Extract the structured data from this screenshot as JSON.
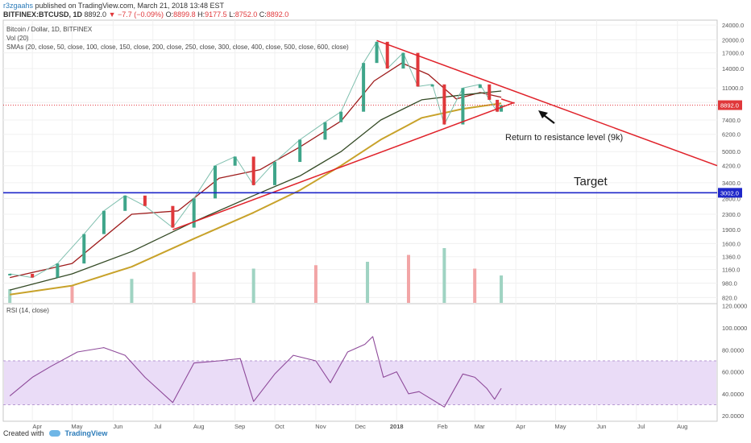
{
  "header": {
    "author": "r3zgaahs",
    "published_text": " published on TradingView.com, March 21, 2018 13:48 EST",
    "symbol": "BITFINEX:BTCUSD, 1D",
    "last": "8892.0",
    "change": "−7.7 (−0.09%)",
    "o_label": "O:",
    "o_value": "8899.8",
    "h_label": "H:",
    "h_value": "9177.5",
    "l_label": "L:",
    "l_value": "8752.0",
    "c_label": "C:",
    "c_value": "8892.0"
  },
  "legend": {
    "title": "Bitcoin / Dollar, 1D, BITFINEX",
    "vol": "Vol (20)",
    "smas": "SMAs (20, close, 50, close, 100, close, 150, close, 200, close, 250, close, 300, close, 400, close, 500, close, 600, close)",
    "rsi": "RSI (14, close)"
  },
  "annotations": {
    "resistance": "Return to resistance level (9k)",
    "target": "Target"
  },
  "footer": {
    "created_with": "Created with",
    "brand": "TradingView"
  },
  "colors": {
    "up": "#3fa58a",
    "down": "#e0383b",
    "trendline": "#e0222a",
    "sma_red": "#9e1b1b",
    "sma_green": "#344a25",
    "sma_gold": "#c8a22a",
    "target_line": "#1f27c9",
    "rsi_line": "#8e4a9a",
    "rsi_band": "#eadcf7",
    "volume_up": "#9fd3c2",
    "volume_down": "#f2a5a6"
  },
  "chart_data": [
    {
      "type": "line",
      "title": "Bitcoin / Dollar, 1D, BITFINEX",
      "y_scale": "log",
      "y_ticks": [
        24000,
        20000,
        17000,
        14000,
        11000,
        9200,
        7400,
        6200,
        5000,
        4200,
        3400,
        2800,
        2300,
        1900,
        1600,
        1360,
        1160,
        980,
        820
      ],
      "y_tick_labels": [
        "24000.0",
        "20000.0",
        "17000.0",
        "14000.0",
        "11000.0",
        "9200.0",
        "7400.0",
        "6200.0",
        "5000.0",
        "4200.0",
        "3400.0",
        "2800.0",
        "2300.0",
        "1900.0",
        "1600.0",
        "1360.0",
        "1160.0",
        "980.0",
        "820.0"
      ],
      "x_labels": [
        "Apr",
        "May",
        "Jun",
        "Jul",
        "Aug",
        "Sep",
        "Oct",
        "Nov",
        "Dec",
        "2018",
        "Feb",
        "Mar",
        "Apr",
        "May",
        "Jun",
        "Jul",
        "Aug"
      ],
      "price_labels": [
        {
          "value": 8892,
          "text": "8892.0"
        },
        {
          "value": 3002,
          "text": "3002.0"
        }
      ],
      "series": [
        {
          "name": "BTCUSD",
          "x": [
            "2017-03-15",
            "2017-04-01",
            "2017-04-20",
            "2017-05-10",
            "2017-05-25",
            "2017-06-10",
            "2017-06-25",
            "2017-07-16",
            "2017-08-01",
            "2017-08-17",
            "2017-09-01",
            "2017-09-15",
            "2017-10-01",
            "2017-10-20",
            "2017-11-08",
            "2017-11-20",
            "2017-12-07",
            "2017-12-17",
            "2017-12-25",
            "2018-01-06",
            "2018-01-17",
            "2018-01-28",
            "2018-02-06",
            "2018-02-20",
            "2018-03-05",
            "2018-03-12",
            "2018-03-18",
            "2018-03-21"
          ],
          "values": [
            1100,
            1050,
            1250,
            1800,
            2400,
            2900,
            2550,
            1950,
            2800,
            4200,
            4700,
            3300,
            4400,
            5800,
            7200,
            8200,
            15000,
            19500,
            14000,
            17000,
            11200,
            11500,
            7000,
            11000,
            11500,
            9500,
            8200,
            8892
          ]
        },
        {
          "name": "SMA 20",
          "x": [
            "2017-03-15",
            "2017-05-01",
            "2017-06-15",
            "2017-07-20",
            "2017-08-20",
            "2017-09-20",
            "2017-10-20",
            "2017-11-20",
            "2017-12-15",
            "2018-01-05",
            "2018-01-25",
            "2018-02-15",
            "2018-03-05",
            "2018-03-21"
          ],
          "values": [
            1050,
            1250,
            2300,
            2400,
            3600,
            4000,
            5300,
            7300,
            12000,
            15000,
            13000,
            9600,
            10400,
            9800
          ]
        },
        {
          "name": "SMA 100",
          "x": [
            "2017-03-15",
            "2017-05-01",
            "2017-06-15",
            "2017-08-01",
            "2017-09-15",
            "2017-10-20",
            "2017-11-20",
            "2017-12-20",
            "2018-01-20",
            "2018-02-20",
            "2018-03-21"
          ],
          "values": [
            900,
            1100,
            1450,
            2100,
            2900,
            3700,
            5000,
            7400,
            9500,
            10100,
            10600
          ]
        },
        {
          "name": "SMA 150",
          "x": [
            "2017-03-15",
            "2017-05-01",
            "2017-06-15",
            "2017-08-01",
            "2017-09-15",
            "2017-10-20",
            "2017-11-20",
            "2017-12-20",
            "2018-01-20",
            "2018-02-20",
            "2018-03-21"
          ],
          "values": [
            850,
            950,
            1200,
            1700,
            2350,
            3100,
            4200,
            5800,
            7600,
            8500,
            9100
          ]
        }
      ],
      "trendlines": [
        {
          "from": {
            "x": "2017-12-17",
            "y": 19800
          },
          "to": {
            "x": "2018-08-31",
            "y": 4200
          }
        },
        {
          "from": {
            "x": "2017-07-16",
            "y": 1900
          },
          "to": {
            "x": "2018-03-31",
            "y": 9200
          }
        },
        {
          "from": {
            "x": "2018-03-21",
            "y": 9600
          },
          "to": {
            "x": "2018-03-31",
            "y": 9100
          }
        }
      ],
      "horizontal_lines": [
        {
          "value": 3002,
          "label": "Target"
        },
        {
          "value": 8892
        }
      ]
    },
    {
      "type": "bar",
      "title": "Vol (20)",
      "series": [
        {
          "x": [
            "2017-03-15",
            "2017-05-01",
            "2017-06-15",
            "2017-08-01",
            "2017-09-15",
            "2017-11-01",
            "2017-12-10",
            "2018-01-10",
            "2018-02-06",
            "2018-03-01",
            "2018-03-21"
          ],
          "values": [
            20,
            25,
            35,
            45,
            50,
            55,
            60,
            70,
            80,
            50,
            40
          ]
        }
      ]
    },
    {
      "type": "line",
      "title": "RSI (14, close)",
      "y_ticks": [
        120,
        100,
        80,
        60,
        40,
        20
      ],
      "y_tick_labels": [
        "120.0000",
        "100.0000",
        "80.0000",
        "60.0000",
        "40.0000",
        "20.0000"
      ],
      "band": [
        30,
        70
      ],
      "series": [
        {
          "name": "RSI",
          "x": [
            "2017-03-15",
            "2017-04-01",
            "2017-04-15",
            "2017-05-05",
            "2017-05-25",
            "2017-06-10",
            "2017-06-25",
            "2017-07-16",
            "2017-08-01",
            "2017-08-20",
            "2017-09-05",
            "2017-09-15",
            "2017-10-01",
            "2017-10-15",
            "2017-11-01",
            "2017-11-12",
            "2017-11-25",
            "2017-12-08",
            "2017-12-14",
            "2017-12-22",
            "2018-01-01",
            "2018-01-10",
            "2018-01-18",
            "2018-02-06",
            "2018-02-20",
            "2018-03-01",
            "2018-03-10",
            "2018-03-16",
            "2018-03-21"
          ],
          "values": [
            38,
            55,
            65,
            78,
            82,
            75,
            55,
            32,
            68,
            70,
            72,
            33,
            58,
            75,
            70,
            50,
            78,
            85,
            92,
            55,
            60,
            40,
            42,
            28,
            58,
            55,
            45,
            35,
            45
          ]
        }
      ]
    }
  ]
}
